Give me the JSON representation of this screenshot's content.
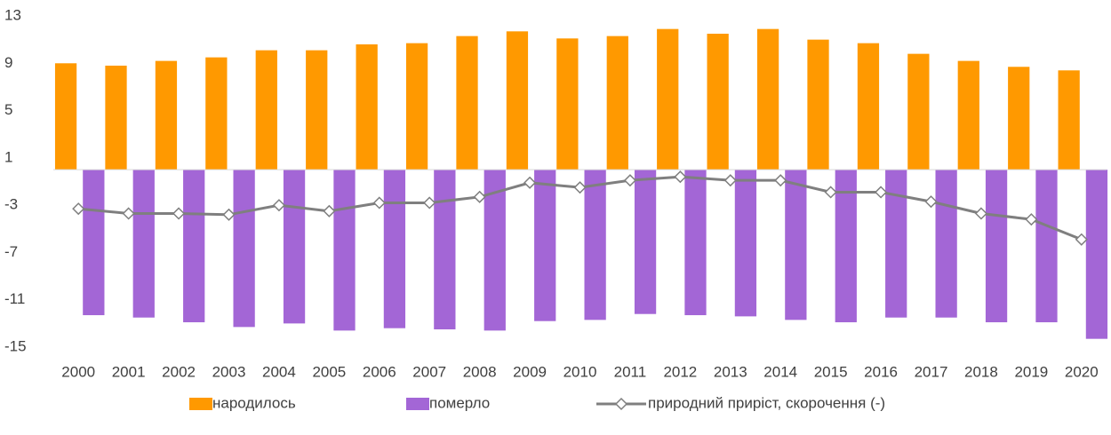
{
  "chart_data": {
    "type": "bar-line",
    "categories": [
      "2000",
      "2001",
      "2002",
      "2003",
      "2004",
      "2005",
      "2006",
      "2007",
      "2008",
      "2009",
      "2010",
      "2011",
      "2012",
      "2013",
      "2014",
      "2015",
      "2016",
      "2017",
      "2018",
      "2019",
      "2020"
    ],
    "series": [
      {
        "name": "народилось",
        "color": "#ff9900",
        "kind": "bar",
        "values": [
          9.0,
          8.8,
          9.2,
          9.5,
          10.1,
          10.1,
          10.6,
          10.7,
          11.3,
          11.7,
          11.1,
          11.3,
          11.9,
          11.5,
          11.9,
          11.0,
          10.7,
          9.8,
          9.2,
          8.7,
          8.4
        ]
      },
      {
        "name": "померло",
        "color": "#a366d6",
        "kind": "bar",
        "values": [
          -12.3,
          -12.5,
          -12.9,
          -13.3,
          -13.0,
          -13.6,
          -13.4,
          -13.5,
          -13.6,
          -12.8,
          -12.7,
          -12.2,
          -12.3,
          -12.4,
          -12.7,
          -12.9,
          -12.5,
          -12.5,
          -12.9,
          -12.9,
          -14.3
        ]
      },
      {
        "name": "природний приріст, скорочення (-)",
        "color": "#7f7f7f",
        "kind": "line",
        "values": [
          -3.3,
          -3.7,
          -3.7,
          -3.8,
          -3.0,
          -3.5,
          -2.8,
          -2.8,
          -2.3,
          -1.1,
          -1.5,
          -0.9,
          -0.6,
          -0.9,
          -0.9,
          -1.9,
          -1.9,
          -2.7,
          -3.7,
          -4.2,
          -5.9
        ]
      }
    ],
    "ylim": [
      -15,
      13
    ],
    "yticks": [
      13,
      9,
      5,
      1,
      -3,
      -7,
      -11,
      -15
    ],
    "grid": false,
    "legend": "bottom"
  }
}
